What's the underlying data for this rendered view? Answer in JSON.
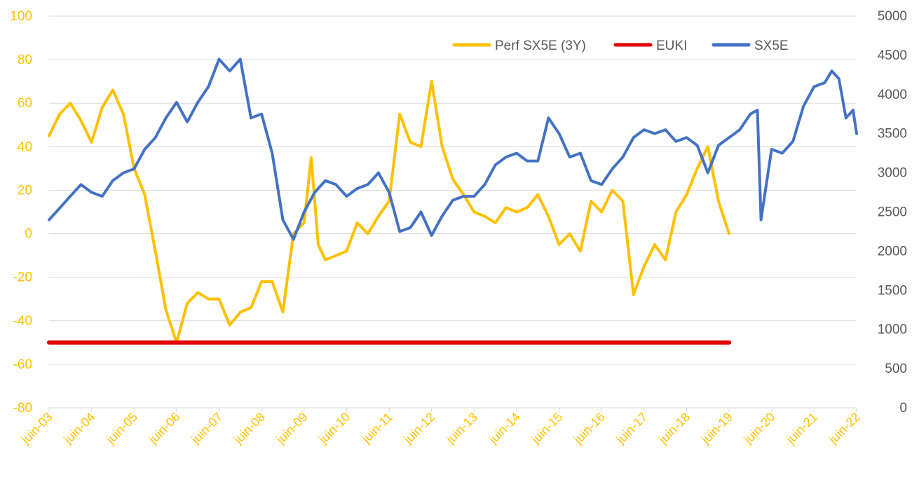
{
  "chart_data": {
    "type": "line",
    "title": "",
    "x_tick_labels": [
      "juin-03",
      "juin-04",
      "juin-05",
      "juin-06",
      "juin-07",
      "juin-08",
      "juin-09",
      "juin-10",
      "juin-11",
      "juin-12",
      "juin-13",
      "juin-14",
      "juin-15",
      "juin-16",
      "juin-17",
      "juin-18",
      "juin-19",
      "juin-20",
      "juin-21",
      "juin-22"
    ],
    "x_range": [
      "2003-06",
      "2022-06"
    ],
    "y_left": {
      "range": [
        -80,
        100
      ],
      "ticks": [
        "-80",
        "-60",
        "-40",
        "-20",
        "0",
        "20",
        "40",
        "60",
        "80",
        "100"
      ],
      "color": "#FFC000"
    },
    "y_right": {
      "range": [
        0,
        5000
      ],
      "ticks": [
        "0",
        "500",
        "1000",
        "1500",
        "2000",
        "2500",
        "3000",
        "3500",
        "4000",
        "4500",
        "5000"
      ],
      "color": "#595959"
    },
    "grid": true,
    "legend_position": "top-right",
    "series": [
      {
        "name": "Perf SX5E (3Y)",
        "axis": "left",
        "color": "#FFC000",
        "points": [
          [
            "2003-06",
            45
          ],
          [
            "2003-09",
            55
          ],
          [
            "2003-12",
            60
          ],
          [
            "2004-03",
            52
          ],
          [
            "2004-06",
            42
          ],
          [
            "2004-09",
            58
          ],
          [
            "2004-12",
            66
          ],
          [
            "2005-03",
            55
          ],
          [
            "2005-06",
            30
          ],
          [
            "2005-09",
            18
          ],
          [
            "2005-12",
            -8
          ],
          [
            "2006-03",
            -35
          ],
          [
            "2006-06",
            -50
          ],
          [
            "2006-09",
            -32
          ],
          [
            "2006-12",
            -27
          ],
          [
            "2007-03",
            -30
          ],
          [
            "2007-06",
            -30
          ],
          [
            "2007-09",
            -42
          ],
          [
            "2007-12",
            -36
          ],
          [
            "2008-03",
            -34
          ],
          [
            "2008-06",
            -22
          ],
          [
            "2008-09",
            -22
          ],
          [
            "2008-12",
            -36
          ],
          [
            "2009-03",
            0
          ],
          [
            "2009-06",
            5
          ],
          [
            "2009-08",
            35
          ],
          [
            "2009-10",
            -5
          ],
          [
            "2009-12",
            -12
          ],
          [
            "2010-03",
            -10
          ],
          [
            "2010-06",
            -8
          ],
          [
            "2010-09",
            5
          ],
          [
            "2010-12",
            0
          ],
          [
            "2011-03",
            8
          ],
          [
            "2011-06",
            15
          ],
          [
            "2011-09",
            55
          ],
          [
            "2011-12",
            42
          ],
          [
            "2012-03",
            40
          ],
          [
            "2012-06",
            70
          ],
          [
            "2012-09",
            40
          ],
          [
            "2012-12",
            25
          ],
          [
            "2013-03",
            18
          ],
          [
            "2013-06",
            10
          ],
          [
            "2013-09",
            8
          ],
          [
            "2013-12",
            5
          ],
          [
            "2014-03",
            12
          ],
          [
            "2014-06",
            10
          ],
          [
            "2014-09",
            12
          ],
          [
            "2014-12",
            18
          ],
          [
            "2015-03",
            8
          ],
          [
            "2015-06",
            -5
          ],
          [
            "2015-09",
            0
          ],
          [
            "2015-12",
            -8
          ],
          [
            "2016-03",
            15
          ],
          [
            "2016-06",
            10
          ],
          [
            "2016-09",
            20
          ],
          [
            "2016-12",
            15
          ],
          [
            "2017-03",
            -28
          ],
          [
            "2017-06",
            -15
          ],
          [
            "2017-09",
            -5
          ],
          [
            "2017-12",
            -12
          ],
          [
            "2018-03",
            10
          ],
          [
            "2018-06",
            18
          ],
          [
            "2018-09",
            30
          ],
          [
            "2018-12",
            40
          ],
          [
            "2019-03",
            15
          ],
          [
            "2019-06",
            0
          ]
        ]
      },
      {
        "name": "EUKI",
        "axis": "left",
        "color": "#E00000",
        "points": [
          [
            "2003-06",
            -50
          ],
          [
            "2019-06",
            -50
          ]
        ]
      },
      {
        "name": "SX5E",
        "axis": "right",
        "color": "#4472C4",
        "points": [
          [
            "2003-06",
            2400
          ],
          [
            "2003-09",
            2550
          ],
          [
            "2003-12",
            2700
          ],
          [
            "2004-03",
            2850
          ],
          [
            "2004-06",
            2750
          ],
          [
            "2004-09",
            2700
          ],
          [
            "2004-12",
            2900
          ],
          [
            "2005-03",
            3000
          ],
          [
            "2005-06",
            3050
          ],
          [
            "2005-09",
            3300
          ],
          [
            "2005-12",
            3450
          ],
          [
            "2006-03",
            3700
          ],
          [
            "2006-06",
            3900
          ],
          [
            "2006-09",
            3650
          ],
          [
            "2006-12",
            3900
          ],
          [
            "2007-03",
            4100
          ],
          [
            "2007-06",
            4450
          ],
          [
            "2007-09",
            4300
          ],
          [
            "2007-12",
            4450
          ],
          [
            "2008-03",
            3700
          ],
          [
            "2008-06",
            3750
          ],
          [
            "2008-09",
            3250
          ],
          [
            "2008-12",
            2400
          ],
          [
            "2009-03",
            2150
          ],
          [
            "2009-06",
            2500
          ],
          [
            "2009-09",
            2750
          ],
          [
            "2009-12",
            2900
          ],
          [
            "2010-03",
            2850
          ],
          [
            "2010-06",
            2700
          ],
          [
            "2010-09",
            2800
          ],
          [
            "2010-12",
            2850
          ],
          [
            "2011-03",
            3000
          ],
          [
            "2011-06",
            2750
          ],
          [
            "2011-09",
            2250
          ],
          [
            "2011-12",
            2300
          ],
          [
            "2012-03",
            2500
          ],
          [
            "2012-06",
            2200
          ],
          [
            "2012-09",
            2450
          ],
          [
            "2012-12",
            2650
          ],
          [
            "2013-03",
            2700
          ],
          [
            "2013-06",
            2700
          ],
          [
            "2013-09",
            2850
          ],
          [
            "2013-12",
            3100
          ],
          [
            "2014-03",
            3200
          ],
          [
            "2014-06",
            3250
          ],
          [
            "2014-09",
            3150
          ],
          [
            "2014-12",
            3150
          ],
          [
            "2015-03",
            3700
          ],
          [
            "2015-06",
            3500
          ],
          [
            "2015-09",
            3200
          ],
          [
            "2015-12",
            3250
          ],
          [
            "2016-03",
            2900
          ],
          [
            "2016-06",
            2850
          ],
          [
            "2016-09",
            3050
          ],
          [
            "2016-12",
            3200
          ],
          [
            "2017-03",
            3450
          ],
          [
            "2017-06",
            3550
          ],
          [
            "2017-09",
            3500
          ],
          [
            "2017-12",
            3550
          ],
          [
            "2018-03",
            3400
          ],
          [
            "2018-06",
            3450
          ],
          [
            "2018-09",
            3350
          ],
          [
            "2018-12",
            3000
          ],
          [
            "2019-03",
            3350
          ],
          [
            "2019-06",
            3450
          ],
          [
            "2019-09",
            3550
          ],
          [
            "2019-12",
            3750
          ],
          [
            "2020-02",
            3800
          ],
          [
            "2020-03",
            2400
          ],
          [
            "2020-06",
            3300
          ],
          [
            "2020-09",
            3250
          ],
          [
            "2020-12",
            3400
          ],
          [
            "2021-03",
            3850
          ],
          [
            "2021-06",
            4100
          ],
          [
            "2021-09",
            4150
          ],
          [
            "2021-11",
            4300
          ],
          [
            "2022-01",
            4200
          ],
          [
            "2022-03",
            3700
          ],
          [
            "2022-05",
            3800
          ],
          [
            "2022-06",
            3500
          ]
        ]
      }
    ]
  }
}
